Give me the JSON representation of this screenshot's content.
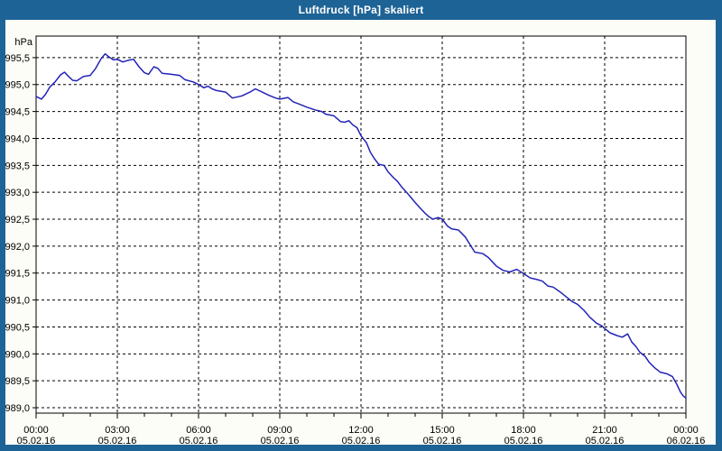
{
  "window": {
    "title": "Luftdruck [hPa] skaliert"
  },
  "colors": {
    "frame_blue": "#1e6396",
    "panel_background": "#fcfdf6",
    "plot_background": "#ffffff",
    "grid_line": "#000000",
    "axis_line": "#000000",
    "series_line": "#2323b8",
    "title_text": "#ffffff",
    "label_text": "#000000"
  },
  "chart_data": {
    "type": "line",
    "title": "Luftdruck [hPa] skaliert",
    "ylabel": "hPa",
    "xlabel": "",
    "grid": true,
    "legend": "none",
    "xlim_hours": [
      0,
      24
    ],
    "ylim": [
      988.9,
      995.9
    ],
    "yticks": [
      {
        "value": 995.5,
        "label": "995,5"
      },
      {
        "value": 995.0,
        "label": "995,0"
      },
      {
        "value": 994.5,
        "label": "994,5"
      },
      {
        "value": 994.0,
        "label": "994,0"
      },
      {
        "value": 993.5,
        "label": "993,5"
      },
      {
        "value": 993.0,
        "label": "993,0"
      },
      {
        "value": 992.5,
        "label": "992,5"
      },
      {
        "value": 992.0,
        "label": "992,0"
      },
      {
        "value": 991.5,
        "label": "991,5"
      },
      {
        "value": 991.0,
        "label": "991,0"
      },
      {
        "value": 990.5,
        "label": "990,5"
      },
      {
        "value": 990.0,
        "label": "990,0"
      },
      {
        "value": 989.5,
        "label": "989,5"
      },
      {
        "value": 989.0,
        "label": "989,0"
      }
    ],
    "xticks": [
      {
        "hour": 0,
        "time": "00:00",
        "date": "05.02.16"
      },
      {
        "hour": 3,
        "time": "03:00",
        "date": "05.02.16"
      },
      {
        "hour": 6,
        "time": "06:00",
        "date": "05.02.16"
      },
      {
        "hour": 9,
        "time": "09:00",
        "date": "05.02.16"
      },
      {
        "hour": 12,
        "time": "12:00",
        "date": "05.02.16"
      },
      {
        "hour": 15,
        "time": "15:00",
        "date": "05.02.16"
      },
      {
        "hour": 18,
        "time": "18:00",
        "date": "05.02.16"
      },
      {
        "hour": 21,
        "time": "21:00",
        "date": "05.02.16"
      },
      {
        "hour": 24,
        "time": "00:00",
        "date": "06.02.16"
      }
    ],
    "minor_tick_every_hours": 1,
    "series": [
      {
        "name": "Luftdruck",
        "unit": "hPa",
        "points": [
          [
            0.0,
            994.78
          ],
          [
            0.2,
            994.73
          ],
          [
            0.35,
            994.82
          ],
          [
            0.5,
            994.95
          ],
          [
            0.7,
            995.05
          ],
          [
            0.9,
            995.18
          ],
          [
            1.05,
            995.23
          ],
          [
            1.2,
            995.15
          ],
          [
            1.35,
            995.08
          ],
          [
            1.5,
            995.07
          ],
          [
            1.75,
            995.15
          ],
          [
            2.0,
            995.17
          ],
          [
            2.2,
            995.3
          ],
          [
            2.4,
            995.48
          ],
          [
            2.55,
            995.57
          ],
          [
            2.7,
            995.51
          ],
          [
            2.85,
            995.46
          ],
          [
            3.0,
            995.47
          ],
          [
            3.2,
            995.42
          ],
          [
            3.4,
            995.45
          ],
          [
            3.6,
            995.47
          ],
          [
            3.8,
            995.33
          ],
          [
            4.0,
            995.22
          ],
          [
            4.15,
            995.19
          ],
          [
            4.35,
            995.33
          ],
          [
            4.5,
            995.3
          ],
          [
            4.65,
            995.21
          ],
          [
            5.0,
            995.19
          ],
          [
            5.3,
            995.17
          ],
          [
            5.5,
            995.09
          ],
          [
            5.8,
            995.05
          ],
          [
            6.0,
            995.0
          ],
          [
            6.2,
            994.94
          ],
          [
            6.35,
            994.97
          ],
          [
            6.5,
            994.92
          ],
          [
            6.65,
            994.89
          ],
          [
            7.0,
            994.86
          ],
          [
            7.25,
            994.75
          ],
          [
            7.6,
            994.79
          ],
          [
            7.9,
            994.86
          ],
          [
            8.1,
            994.92
          ],
          [
            8.35,
            994.86
          ],
          [
            8.6,
            994.8
          ],
          [
            8.85,
            994.75
          ],
          [
            9.0,
            994.73
          ],
          [
            9.3,
            994.76
          ],
          [
            9.5,
            994.68
          ],
          [
            9.7,
            994.64
          ],
          [
            10.0,
            994.58
          ],
          [
            10.3,
            994.53
          ],
          [
            10.55,
            994.5
          ],
          [
            10.7,
            994.45
          ],
          [
            11.0,
            994.42
          ],
          [
            11.25,
            994.31
          ],
          [
            11.4,
            994.3
          ],
          [
            11.55,
            994.33
          ],
          [
            11.7,
            994.25
          ],
          [
            11.85,
            994.2
          ],
          [
            12.0,
            994.05
          ],
          [
            12.2,
            993.92
          ],
          [
            12.35,
            993.74
          ],
          [
            12.5,
            993.62
          ],
          [
            12.65,
            993.52
          ],
          [
            12.85,
            993.5
          ],
          [
            13.0,
            993.38
          ],
          [
            13.2,
            993.27
          ],
          [
            13.35,
            993.2
          ],
          [
            13.5,
            993.1
          ],
          [
            13.7,
            992.99
          ],
          [
            13.85,
            992.9
          ],
          [
            14.0,
            992.81
          ],
          [
            14.2,
            992.7
          ],
          [
            14.35,
            992.62
          ],
          [
            14.5,
            992.55
          ],
          [
            14.65,
            992.5
          ],
          [
            14.85,
            992.53
          ],
          [
            15.0,
            992.5
          ],
          [
            15.2,
            992.37
          ],
          [
            15.35,
            992.32
          ],
          [
            15.6,
            992.3
          ],
          [
            15.85,
            992.17
          ],
          [
            16.0,
            992.05
          ],
          [
            16.2,
            991.89
          ],
          [
            16.5,
            991.86
          ],
          [
            16.7,
            991.79
          ],
          [
            16.85,
            991.71
          ],
          [
            17.0,
            991.63
          ],
          [
            17.25,
            991.55
          ],
          [
            17.5,
            991.52
          ],
          [
            17.75,
            991.57
          ],
          [
            18.0,
            991.49
          ],
          [
            18.25,
            991.41
          ],
          [
            18.5,
            991.38
          ],
          [
            18.7,
            991.35
          ],
          [
            18.9,
            991.26
          ],
          [
            19.1,
            991.24
          ],
          [
            19.35,
            991.15
          ],
          [
            19.6,
            991.05
          ],
          [
            19.8,
            990.97
          ],
          [
            20.0,
            990.92
          ],
          [
            20.25,
            990.8
          ],
          [
            20.45,
            990.68
          ],
          [
            20.7,
            990.57
          ],
          [
            20.9,
            990.52
          ],
          [
            21.0,
            990.47
          ],
          [
            21.2,
            990.39
          ],
          [
            21.45,
            990.34
          ],
          [
            21.65,
            990.31
          ],
          [
            21.85,
            990.37
          ],
          [
            22.0,
            990.22
          ],
          [
            22.15,
            990.14
          ],
          [
            22.3,
            990.03
          ],
          [
            22.5,
            989.95
          ],
          [
            22.65,
            989.84
          ],
          [
            22.85,
            989.74
          ],
          [
            23.05,
            989.66
          ],
          [
            23.3,
            989.63
          ],
          [
            23.5,
            989.58
          ],
          [
            23.65,
            989.45
          ],
          [
            23.8,
            989.29
          ],
          [
            23.9,
            989.22
          ],
          [
            24.0,
            989.18
          ]
        ]
      }
    ]
  }
}
